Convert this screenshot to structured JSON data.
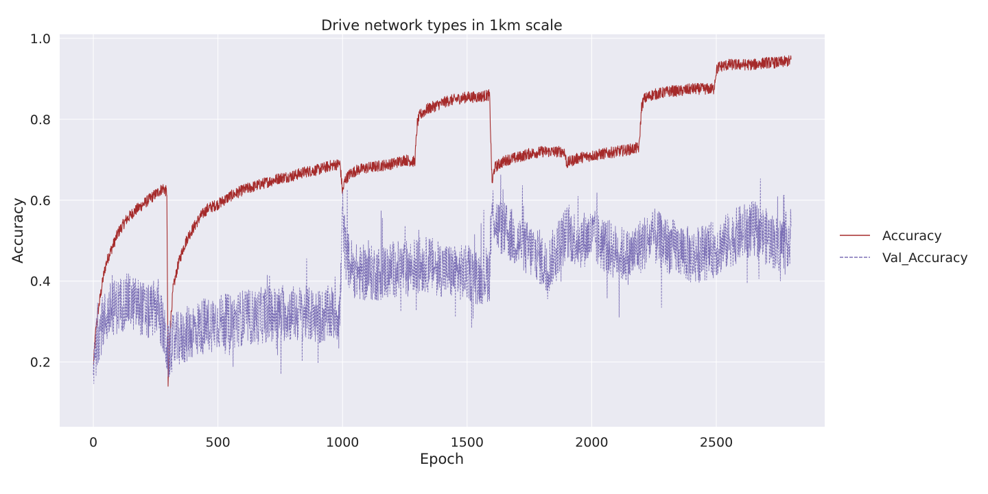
{
  "chart_data": {
    "type": "line",
    "title": "Drive network types in 1km scale",
    "xlabel": "Epoch",
    "ylabel": "Accuracy",
    "xlim": [
      -135,
      2935
    ],
    "ylim": [
      0.04,
      1.01
    ],
    "xticks": [
      0,
      500,
      1000,
      1500,
      2000,
      2500
    ],
    "yticks": [
      0.2,
      0.4,
      0.6,
      0.8,
      1.0
    ],
    "grid": true,
    "legend_position": "right",
    "background_color": "#EAEAF2",
    "series": [
      {
        "name": "Accuracy",
        "color": "#A52A2A",
        "style": "solid",
        "x": [
          0,
          10,
          20,
          30,
          40,
          50,
          60,
          80,
          100,
          130,
          160,
          200,
          240,
          280,
          295,
          300,
          305,
          310,
          320,
          340,
          360,
          380,
          400,
          430,
          460,
          500,
          550,
          600,
          650,
          700,
          750,
          800,
          850,
          900,
          950,
          990,
          1000,
          1010,
          1030,
          1060,
          1100,
          1150,
          1200,
          1250,
          1290,
          1300,
          1310,
          1340,
          1380,
          1420,
          1460,
          1500,
          1540,
          1590,
          1600,
          1610,
          1630,
          1660,
          1700,
          1750,
          1800,
          1850,
          1890,
          1900,
          1910,
          1950,
          2000,
          2050,
          2100,
          2150,
          2190,
          2200,
          2210,
          2240,
          2280,
          2320,
          2360,
          2400,
          2440,
          2490,
          2500,
          2510,
          2550,
          2600,
          2650,
          2700,
          2750,
          2800
        ],
        "values": [
          0.19,
          0.28,
          0.33,
          0.37,
          0.41,
          0.44,
          0.46,
          0.49,
          0.52,
          0.55,
          0.57,
          0.59,
          0.61,
          0.63,
          0.62,
          0.14,
          0.24,
          0.3,
          0.38,
          0.44,
          0.48,
          0.51,
          0.53,
          0.56,
          0.58,
          0.59,
          0.61,
          0.625,
          0.635,
          0.645,
          0.655,
          0.66,
          0.67,
          0.675,
          0.685,
          0.69,
          0.62,
          0.65,
          0.665,
          0.675,
          0.68,
          0.685,
          0.69,
          0.7,
          0.695,
          0.79,
          0.81,
          0.825,
          0.835,
          0.845,
          0.85,
          0.855,
          0.855,
          0.86,
          0.64,
          0.68,
          0.69,
          0.7,
          0.705,
          0.715,
          0.72,
          0.72,
          0.72,
          0.69,
          0.695,
          0.705,
          0.71,
          0.715,
          0.72,
          0.725,
          0.73,
          0.83,
          0.85,
          0.86,
          0.865,
          0.87,
          0.87,
          0.875,
          0.875,
          0.875,
          0.92,
          0.93,
          0.935,
          0.935,
          0.935,
          0.94,
          0.94,
          0.945
        ]
      },
      {
        "name": "Val_Accuracy",
        "color": "#7B6FB5",
        "style": "dashed",
        "x": [
          0,
          15,
          40,
          70,
          100,
          140,
          180,
          220,
          260,
          300,
          320,
          360,
          400,
          450,
          500,
          550,
          600,
          650,
          700,
          750,
          800,
          850,
          900,
          950,
          990,
          1000,
          1010,
          1030,
          1060,
          1100,
          1150,
          1200,
          1250,
          1300,
          1350,
          1400,
          1450,
          1500,
          1550,
          1590,
          1600,
          1620,
          1660,
          1700,
          1740,
          1780,
          1820,
          1860,
          1900,
          1950,
          2000,
          2050,
          2100,
          2150,
          2200,
          2250,
          2300,
          2350,
          2400,
          2450,
          2500,
          2550,
          2600,
          2650,
          2700,
          2750,
          2800
        ],
        "values": [
          0.17,
          0.26,
          0.3,
          0.33,
          0.34,
          0.35,
          0.34,
          0.32,
          0.34,
          0.22,
          0.25,
          0.26,
          0.28,
          0.29,
          0.3,
          0.3,
          0.31,
          0.31,
          0.32,
          0.32,
          0.32,
          0.32,
          0.31,
          0.32,
          0.32,
          0.57,
          0.48,
          0.44,
          0.42,
          0.42,
          0.42,
          0.43,
          0.43,
          0.44,
          0.44,
          0.43,
          0.42,
          0.42,
          0.41,
          0.42,
          0.58,
          0.54,
          0.52,
          0.5,
          0.48,
          0.47,
          0.43,
          0.48,
          0.52,
          0.5,
          0.51,
          0.49,
          0.47,
          0.46,
          0.49,
          0.51,
          0.49,
          0.48,
          0.46,
          0.47,
          0.48,
          0.5,
          0.52,
          0.53,
          0.51,
          0.49,
          0.51
        ]
      }
    ]
  }
}
